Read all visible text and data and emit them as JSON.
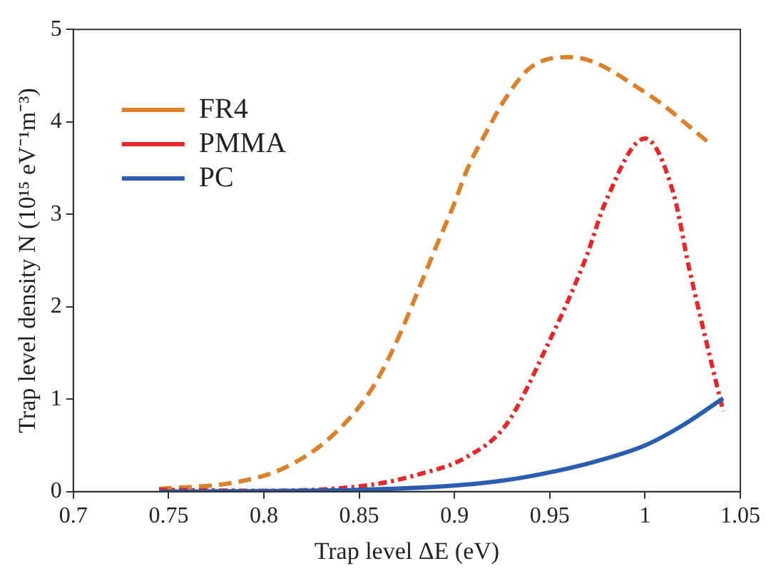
{
  "chart_data": {
    "type": "line",
    "xlabel": "Trap level ΔE (eV)",
    "ylabel": "Trap level density N (10¹⁵ eV⁻¹m⁻³)",
    "xlim": [
      0.7,
      1.05
    ],
    "xticks": [
      0.7,
      0.75,
      0.8,
      0.85,
      0.9,
      0.95,
      1,
      1.05
    ],
    "ylim": [
      0,
      5
    ],
    "yticks": [
      0,
      1,
      2,
      3,
      4,
      5
    ],
    "grid": false,
    "legend": "top left",
    "marker": "none",
    "series": [
      {
        "name": "FR4",
        "color": "#d9822b",
        "line_style": "dashed",
        "x": [
          0.745,
          0.785,
          0.81,
          0.834,
          0.855,
          0.868,
          0.886,
          0.891,
          0.899,
          0.907,
          0.917,
          0.927,
          0.94,
          0.961,
          1.0,
          1.035
        ],
        "values": [
          0.03,
          0.1,
          0.25,
          0.57,
          1.06,
          1.55,
          2.43,
          2.68,
          3.07,
          3.5,
          3.9,
          4.26,
          4.59,
          4.7,
          4.32,
          3.75
        ]
      },
      {
        "name": "PMMA",
        "color": "#e8262a",
        "line_style": "dotted",
        "x": [
          0.745,
          0.8,
          0.855,
          0.88,
          0.906,
          0.927,
          0.948,
          0.969,
          0.979,
          1.0,
          1.015,
          1.023,
          1.033,
          1.041
        ],
        "values": [
          0.02,
          0.01,
          0.07,
          0.18,
          0.37,
          0.72,
          1.55,
          2.53,
          3.12,
          3.82,
          3.22,
          2.43,
          1.55,
          0.87
        ]
      },
      {
        "name": "PC",
        "color": "#2a5cb0",
        "line_style": "solid",
        "x": [
          0.745,
          0.85,
          0.896,
          0.922,
          0.948,
          0.973,
          1.0,
          1.02,
          1.041
        ],
        "values": [
          0,
          0.02,
          0.06,
          0.11,
          0.2,
          0.32,
          0.5,
          0.72,
          1.01
        ]
      }
    ]
  }
}
